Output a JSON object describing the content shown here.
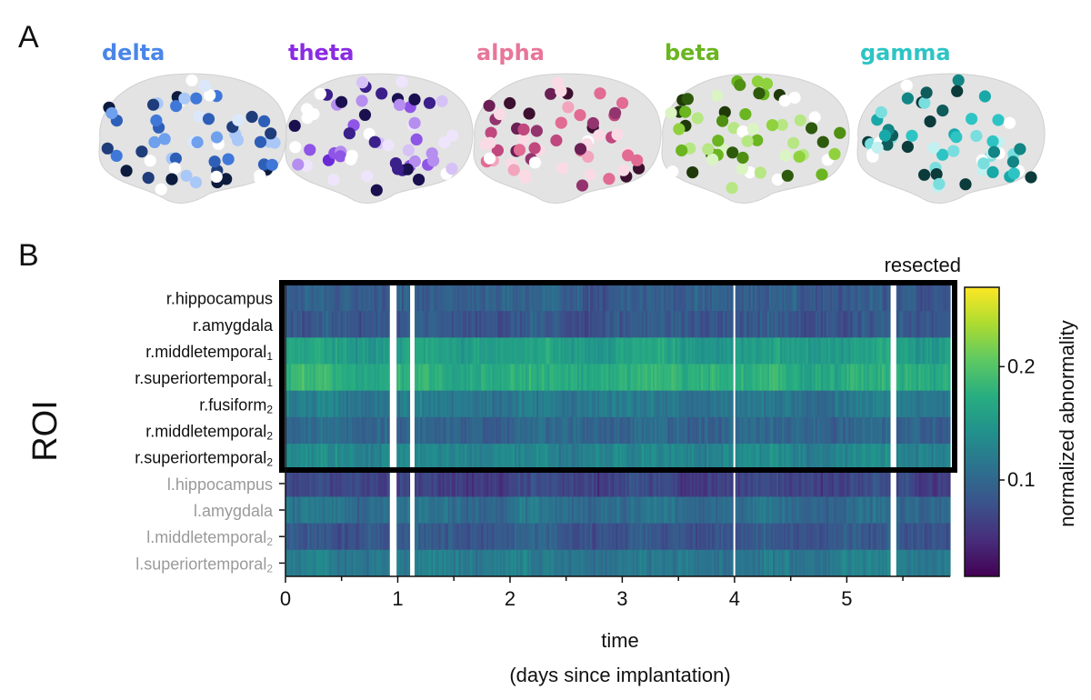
{
  "panel_a": {
    "letter": "A",
    "bands": [
      {
        "name": "delta",
        "color": "#4a86e8",
        "dot_colors": [
          "#0d1b3f",
          "#1f3d7a",
          "#2e5fb8",
          "#3f78d8",
          "#6ea0ee",
          "#a9c8f7",
          "#dbe8fc",
          "#ffffff"
        ]
      },
      {
        "name": "theta",
        "color": "#8a2be2",
        "dot_colors": [
          "#1a1050",
          "#3b1f8a",
          "#6a2ad8",
          "#8f55e6",
          "#b58ef0",
          "#d6c2f7",
          "#eee5fc",
          "#ffffff"
        ]
      },
      {
        "name": "alpha",
        "color": "#e8769a",
        "dot_colors": [
          "#3d1030",
          "#6b1f55",
          "#93346f",
          "#c0487e",
          "#e26b93",
          "#f2a5bd",
          "#fadbe5",
          "#ffffff"
        ]
      },
      {
        "name": "beta",
        "color": "#6ab520",
        "dot_colors": [
          "#1f3a08",
          "#2e5a0c",
          "#4f8f12",
          "#6ab520",
          "#8fd23d",
          "#b7e784",
          "#dbf4c4",
          "#ffffff"
        ]
      },
      {
        "name": "gamma",
        "color": "#2ec4c4",
        "dot_colors": [
          "#0b3b3b",
          "#0e5c5c",
          "#128585",
          "#19a8a8",
          "#2ec4c4",
          "#7adede",
          "#c3f0f0",
          "#ffffff"
        ]
      }
    ]
  },
  "panel_b": {
    "letter": "B",
    "y_axis_title": "ROI",
    "resected_label": "resected",
    "colorbar": {
      "label": "normalized abnormality",
      "min": 0.015,
      "max": 0.27,
      "tick_values": [
        0.1,
        0.2
      ],
      "tick_labels": [
        "0.1",
        "0.2"
      ]
    }
  },
  "chart_data": {
    "type": "heatmap",
    "xlabel_line1": "time",
    "xlabel_line2": "(days since implantation)",
    "x_range": [
      0,
      5.92
    ],
    "x_ticks": [
      0,
      1,
      2,
      3,
      4,
      5
    ],
    "x_tick_labels": [
      "0",
      "1",
      "2",
      "3",
      "4",
      "5"
    ],
    "missing_data_spans_days": [
      [
        0.93,
        0.99
      ],
      [
        1.11,
        1.15
      ],
      [
        3.99,
        4.0
      ],
      [
        5.39,
        5.44
      ]
    ],
    "rows": [
      {
        "label": "r.hippocampus",
        "subscript": "",
        "group": "resected",
        "mean_value": 0.09
      },
      {
        "label": "r.amygdala",
        "subscript": "",
        "group": "resected",
        "mean_value": 0.085
      },
      {
        "label": "r.middletemporal",
        "subscript": "1",
        "group": "resected",
        "mean_value": 0.16
      },
      {
        "label": "r.superiortemporal",
        "subscript": "1",
        "group": "resected",
        "mean_value": 0.175
      },
      {
        "label": "r.fusiform",
        "subscript": "2",
        "group": "resected",
        "mean_value": 0.12
      },
      {
        "label": "r.middletemporal",
        "subscript": "2",
        "group": "resected",
        "mean_value": 0.1
      },
      {
        "label": "r.superiortemporal",
        "subscript": "2",
        "group": "resected",
        "mean_value": 0.13
      },
      {
        "label": "l.hippocampus",
        "subscript": "",
        "group": "non-resected",
        "mean_value": 0.07
      },
      {
        "label": "l.amygdala",
        "subscript": "",
        "group": "non-resected",
        "mean_value": 0.11
      },
      {
        "label": "l.middletemporal",
        "subscript": "2",
        "group": "non-resected",
        "mean_value": 0.085
      },
      {
        "label": "l.superiortemporal",
        "subscript": "2",
        "group": "non-resected",
        "mean_value": 0.12
      }
    ],
    "colormap": "viridis"
  },
  "colors": {
    "resected_label": "#111111",
    "nonresected_label": "#9a9a9a",
    "brain_fill": "#e3e3e3",
    "box": "#000000"
  }
}
